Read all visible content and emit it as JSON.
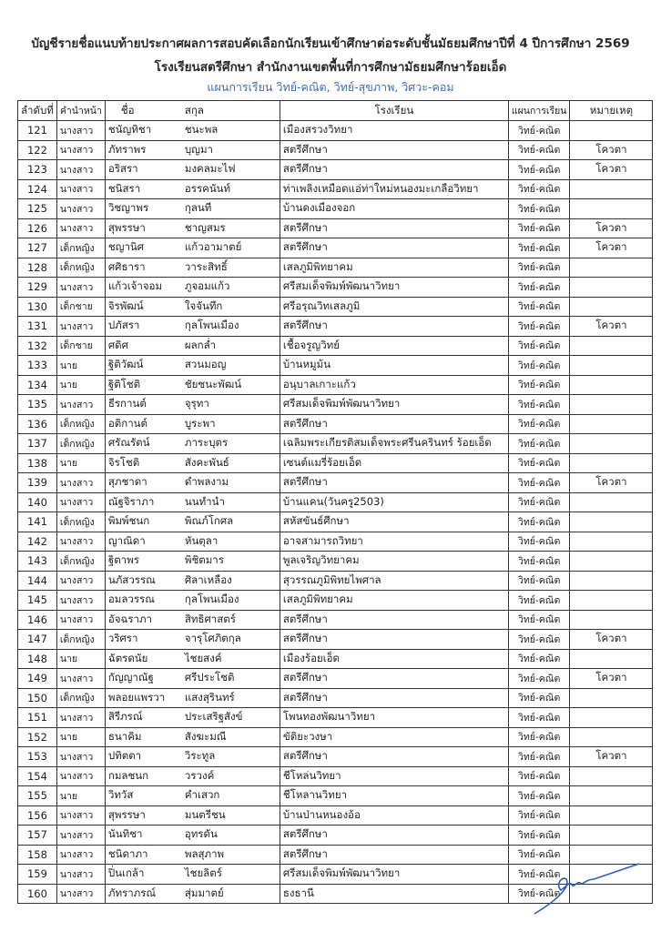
{
  "header": {
    "title_line1": "บัญชีรายชื่อแนบท้ายประกาศผลการสอบคัดเลือกนักเรียนเข้าศึกษาต่อระดับชั้นมัธยมศึกษาปีที่ 4 ปีการศึกษา 2569",
    "title_line2": "โรงเรียนสตรีศึกษา สำนักงานเขตพื้นที่การศึกษามัธยมศึกษาร้อยเอ็ด",
    "program_line": "แผนการเรียน วิทย์-คณิต, วิทย์-สุขภาพ, วิศวะ-คอม",
    "program_color": "#3d6fb8"
  },
  "table": {
    "columns": {
      "no": "ลำดับที่",
      "prefix": "คำนำหน้า",
      "first_name": "ชื่อ",
      "last_name": "สกุล",
      "school": "โรงเรียน",
      "plan": "แผนการเรียน",
      "note": "หมายเหตุ"
    },
    "rows": [
      [
        "121",
        "นางสาว",
        "ชนัญทิชา",
        "ชนะพล",
        "เมืองสรวงวิทยา",
        "วิทย์-คณิต",
        ""
      ],
      [
        "122",
        "นางสาว",
        "ภัทราพร",
        "บุญมา",
        "สตรีศึกษา",
        "วิทย์-คณิต",
        "โควตา"
      ],
      [
        "123",
        "นางสาว",
        "อริสรา",
        "มงคลมะไฟ",
        "สตรีศึกษา",
        "วิทย์-คณิต",
        "โควตา"
      ],
      [
        "124",
        "นางสาว",
        "ชนิสรา",
        "อรรคนันท์",
        "ท่าเพลิงเหมือดแอ่ท่าใหม่หนองมะเกลือวิทยา",
        "วิทย์-คณิต",
        ""
      ],
      [
        "125",
        "นางสาว",
        "วิชญาพร",
        "กุลนที",
        "บ้านดงเมืองจอก",
        "วิทย์-คณิต",
        ""
      ],
      [
        "126",
        "นางสาว",
        "สุพรรษา",
        "ชาญสมร",
        "สตรีศึกษา",
        "วิทย์-คณิต",
        "โควตา"
      ],
      [
        "127",
        "เด็กหญิง",
        "ชญานิศ",
        "แก้วอามาตย์",
        "สตรีศึกษา",
        "วิทย์-คณิต",
        "โควตา"
      ],
      [
        "128",
        "เด็กหญิง",
        "ศศิธารา",
        "วาระสิทธิ์",
        "เสลภูมิพิทยาคม",
        "วิทย์-คณิต",
        ""
      ],
      [
        "129",
        "นางสาว",
        "แก้วเจ้าจอม",
        "ภูจอมแก้ว",
        "ศรีสมเด็จพิมพ์พัฒนาวิทยา",
        "วิทย์-คณิต",
        ""
      ],
      [
        "130",
        "เด็กชาย",
        "จิรพัฒน์",
        "ใจจันทึก",
        "ศรีอรุณวิทเสลภูมิ",
        "วิทย์-คณิต",
        ""
      ],
      [
        "131",
        "นางสาว",
        "ปภัสรา",
        "กุลโพนเมือง",
        "สตรีศึกษา",
        "วิทย์-คณิต",
        "โควตา"
      ],
      [
        "132",
        "เด็กชาย",
        "ศดิศ",
        "ผลกล่ำ",
        "เชื้อจรูญวิทย์",
        "วิทย์-คณิต",
        ""
      ],
      [
        "133",
        "นาย",
        "ฐิติวัฒน์",
        "สวนมอญ",
        "บ้านหมูม้น",
        "วิทย์-คณิต",
        ""
      ],
      [
        "134",
        "นาย",
        "ฐิติโชติ",
        "ชัยชนะพัฒน์",
        "อนุบาลเกาะแก้ว",
        "วิทย์-คณิต",
        ""
      ],
      [
        "135",
        "นางสาว",
        "ธีรกานต์",
        "จุรุทา",
        "ศรีสมเด็จพิมพ์พัฒนาวิทยา",
        "วิทย์-คณิต",
        ""
      ],
      [
        "136",
        "เด็กหญิง",
        "อติกานต์",
        "บูระพา",
        "สตรีศึกษา",
        "วิทย์-คณิต",
        ""
      ],
      [
        "137",
        "เด็กหญิง",
        "ศรัณรัตน์",
        "ภาระบุตร",
        "เฉลิมพระเกียรติสมเด็จพระศรีนครินทร์ ร้อยเอ็ด",
        "วิทย์-คณิต",
        ""
      ],
      [
        "138",
        "นาย",
        "จิรโชติ",
        "สังคะพันธ์",
        "เซนต์แมรี่ร้อยเอ็ด",
        "วิทย์-คณิต",
        ""
      ],
      [
        "139",
        "นางสาว",
        "สุภชาดา",
        "ดำพลงาม",
        "สตรีศึกษา",
        "วิทย์-คณิต",
        "โควตา"
      ],
      [
        "140",
        "นางสาว",
        "ณัฐจิราภา",
        "นนทำนำ",
        "บ้านแคน(วันครู2503)",
        "วิทย์-คณิต",
        ""
      ],
      [
        "141",
        "เด็กหญิง",
        "พิมพ์ชนก",
        "พิณภ์โกศล",
        "สหัสขันธ์ศึกษา",
        "วิทย์-คณิต",
        ""
      ],
      [
        "142",
        "นางสาว",
        "ญาณิดา",
        "หันตุลา",
        "อาจสามารถวิทยา",
        "วิทย์-คณิต",
        ""
      ],
      [
        "143",
        "เด็กหญิง",
        "ฐิตาพร",
        "พิชิตมาร",
        "พูลเจริญวิทยาคม",
        "วิทย์-คณิต",
        ""
      ],
      [
        "144",
        "นางสาว",
        "นภัสวรรณ",
        "ศิลาเหลือง",
        "สุวรรณภูมิพิทยไพศาล",
        "วิทย์-คณิต",
        ""
      ],
      [
        "145",
        "นางสาว",
        "อมลวรรณ",
        "กุลโพนเมือง",
        "เสลภูมิพิทยาคม",
        "วิทย์-คณิต",
        ""
      ],
      [
        "146",
        "นางสาว",
        "อัจฉราภา",
        "สิทธิศาสตร์",
        "สตรีศึกษา",
        "วิทย์-คณิต",
        ""
      ],
      [
        "147",
        "เด็กหญิง",
        "วริศรา",
        "จารุโศภิตกุล",
        "สตรีศึกษา",
        "วิทย์-คณิต",
        "โควตา"
      ],
      [
        "148",
        "นาย",
        "ฉัตรดนัย",
        "ไชยสงค์",
        "เมืองร้อยเอ็ด",
        "วิทย์-คณิต",
        ""
      ],
      [
        "149",
        "นางสาว",
        "กัญญาณัฐ",
        "ศรีประโชติ",
        "สตรีศึกษา",
        "วิทย์-คณิต",
        "โควตา"
      ],
      [
        "150",
        "เด็กหญิง",
        "พลอยแพรวา",
        "แสงสุรินทร์",
        "สตรีศึกษา",
        "วิทย์-คณิต",
        ""
      ],
      [
        "151",
        "นางสาว",
        "สิรีภรณ์",
        "ประเสริฐสังข์",
        "โพนทองพัฒนาวิทยา",
        "วิทย์-คณิต",
        ""
      ],
      [
        "152",
        "นาย",
        "ธนาคิม",
        "สังฆะมณี",
        "ขัติยะวงษา",
        "วิทย์-คณิต",
        ""
      ],
      [
        "153",
        "นางสาว",
        "ปทิตตา",
        "วิระทูล",
        "สตรีศึกษา",
        "วิทย์-คณิต",
        "โควตา"
      ],
      [
        "154",
        "นางสาว",
        "กมลชนก",
        "วรวงค์",
        "ชีโหล่นวิทยา",
        "วิทย์-คณิต",
        ""
      ],
      [
        "155",
        "นาย",
        "วิทวัส",
        "คำเสวก",
        "ชีโหลานวิทยา",
        "วิทย์-คณิต",
        ""
      ],
      [
        "156",
        "นางสาว",
        "สุพรรษา",
        "มนตรีชน",
        "บ้านป่านหนองอ้อ",
        "วิทย์-คณิต",
        ""
      ],
      [
        "157",
        "นางสาว",
        "นันทิชา",
        "อุทรดัน",
        "สตรีศึกษา",
        "วิทย์-คณิต",
        ""
      ],
      [
        "158",
        "นางสาว",
        "ชนิดาภา",
        "พลสุภาพ",
        "สตรีศึกษา",
        "วิทย์-คณิต",
        ""
      ],
      [
        "159",
        "นางสาว",
        "ปิ่นเกล้า",
        "ไชยลิตร์",
        "ศรีสมเด็จพิมพ์พัฒนาวิทยา",
        "วิทย์-คณิต",
        ""
      ],
      [
        "160",
        "นางสาว",
        "ภัทราภรณ์",
        "สุ่มมาตย์",
        "ธงธานี",
        "วิทย์-คณิต",
        ""
      ]
    ]
  },
  "signature_color": "#2a5bc4"
}
